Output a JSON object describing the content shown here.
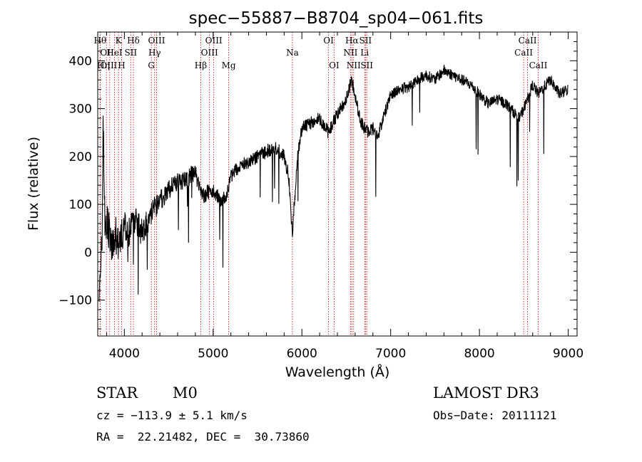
{
  "chart_data": {
    "type": "line",
    "title": "spec−55887−B8704_sp04−061.fits",
    "xlabel": "Wavelength (Å)",
    "ylabel": "Flux (relative)",
    "xlim": [
      3700,
      9100
    ],
    "ylim": [
      -175,
      460
    ],
    "x_ticks": [
      4000,
      5000,
      6000,
      7000,
      8000,
      9000
    ],
    "x_tick_labels": [
      "4000",
      "5000",
      "6000",
      "7000",
      "8000",
      "9000"
    ],
    "y_ticks": [
      -100,
      0,
      100,
      200,
      300,
      400
    ],
    "y_tick_labels": [
      "−100",
      "0",
      "100",
      "200",
      "300",
      "400"
    ],
    "spectrum_anchors": {
      "x": [
        3715,
        3730,
        3750,
        3760,
        3780,
        3800,
        3830,
        3860,
        3900,
        3933,
        3969,
        4000,
        4050,
        4100,
        4150,
        4200,
        4300,
        4400,
        4500,
        4600,
        4700,
        4800,
        4861,
        4900,
        5000,
        5100,
        5150,
        5200,
        5300,
        5400,
        5500,
        5600,
        5700,
        5800,
        5850,
        5893,
        5950,
        6000,
        6100,
        6200,
        6300,
        6400,
        6500,
        6563,
        6600,
        6650,
        6700,
        6750,
        6800,
        6850,
        6900,
        7000,
        7100,
        7200,
        7300,
        7400,
        7500,
        7600,
        7700,
        7800,
        7900,
        8000,
        8100,
        8200,
        8300,
        8400,
        8450,
        8498,
        8542,
        8600,
        8662,
        8700,
        8800,
        8900,
        9000
      ],
      "y": [
        -120,
        -60,
        30,
        280,
        60,
        70,
        40,
        20,
        40,
        10,
        30,
        60,
        40,
        70,
        60,
        40,
        80,
        110,
        130,
        150,
        150,
        170,
        120,
        120,
        130,
        110,
        120,
        160,
        180,
        190,
        200,
        210,
        220,
        200,
        160,
        40,
        200,
        260,
        270,
        280,
        250,
        290,
        320,
        360,
        330,
        280,
        260,
        250,
        260,
        240,
        270,
        330,
        340,
        345,
        360,
        370,
        360,
        380,
        370,
        360,
        350,
        330,
        310,
        320,
        310,
        290,
        280,
        300,
        320,
        350,
        330,
        340,
        360,
        330,
        340
      ],
      "noise_amplitude": [
        40,
        40,
        40,
        40,
        40,
        40,
        40,
        40,
        40,
        40,
        40,
        30,
        30,
        30,
        30,
        30,
        25,
        25,
        20,
        20,
        20,
        18,
        18,
        18,
        18,
        16,
        16,
        15,
        15,
        15,
        15,
        15,
        15,
        15,
        15,
        15,
        15,
        14,
        14,
        14,
        14,
        14,
        14,
        14,
        14,
        14,
        14,
        14,
        14,
        14,
        14,
        12,
        12,
        12,
        12,
        12,
        12,
        12,
        12,
        12,
        12,
        12,
        12,
        12,
        12,
        12,
        12,
        12,
        12,
        12,
        12,
        12,
        12,
        12,
        12
      ]
    },
    "lines": [
      {
        "name": "OIII",
        "x": 3727,
        "row": 2,
        "align": "start"
      },
      {
        "name": "OII",
        "x": 3727,
        "row": 1,
        "align": "start"
      },
      {
        "name": "Hθ",
        "x": 3798,
        "row": 0,
        "align": "end"
      },
      {
        "name": "Hη",
        "x": 3835,
        "row": 2,
        "align": "end"
      },
      {
        "name": "HeI",
        "x": 3889,
        "row": 1,
        "align": "middle"
      },
      {
        "name": "K",
        "x": 3934,
        "row": 0,
        "align": "middle"
      },
      {
        "name": "H",
        "x": 3969,
        "row": 2,
        "align": "middle"
      },
      {
        "name": "SII",
        "x": 4072,
        "row": 1,
        "align": "middle"
      },
      {
        "name": "Hδ",
        "x": 4102,
        "row": 0,
        "align": "middle"
      },
      {
        "name": "G",
        "x": 4304,
        "row": 2,
        "align": "middle"
      },
      {
        "name": "Hγ",
        "x": 4341,
        "row": 1,
        "align": "middle"
      },
      {
        "name": "OIII",
        "x": 4363,
        "row": 0,
        "align": "middle"
      },
      {
        "name": "Hβ",
        "x": 4861,
        "row": 2,
        "align": "middle"
      },
      {
        "name": "OIII",
        "x": 4959,
        "row": 1,
        "align": "middle"
      },
      {
        "name": "OIII",
        "x": 5007,
        "row": 0,
        "align": "middle"
      },
      {
        "name": "Mg",
        "x": 5175,
        "row": 2,
        "align": "middle"
      },
      {
        "name": "Na",
        "x": 5893,
        "row": 1,
        "align": "middle"
      },
      {
        "name": "OI",
        "x": 6300,
        "row": 0,
        "align": "middle"
      },
      {
        "name": "OI",
        "x": 6363,
        "row": 2,
        "align": "middle"
      },
      {
        "name": "NII",
        "x": 6548,
        "row": 1,
        "align": "middle"
      },
      {
        "name": "Hα",
        "x": 6563,
        "row": 0,
        "align": "middle"
      },
      {
        "name": "NII",
        "x": 6583,
        "row": 2,
        "align": "middle"
      },
      {
        "name": "Li",
        "x": 6707,
        "row": 1,
        "align": "middle"
      },
      {
        "name": "SII",
        "x": 6716,
        "row": 0,
        "align": "middle"
      },
      {
        "name": "SII",
        "x": 6731,
        "row": 2,
        "align": "middle"
      },
      {
        "name": "CaII",
        "x": 8498,
        "row": 1,
        "align": "middle"
      },
      {
        "name": "CaII",
        "x": 8542,
        "row": 0,
        "align": "middle"
      },
      {
        "name": "CaII",
        "x": 8662,
        "row": 2,
        "align": "middle"
      }
    ]
  },
  "info": {
    "class": "STAR",
    "subclass": "M0",
    "survey": "LAMOST DR3",
    "cz": "cz = −113.9 ± 5.1 km/s",
    "obs_date": "Obs−Date: 20111121",
    "coords": "RA =  22.21482, DEC =  30.73860"
  },
  "colors": {
    "spectrum": "#000000",
    "line_marker": "#cc0000"
  }
}
